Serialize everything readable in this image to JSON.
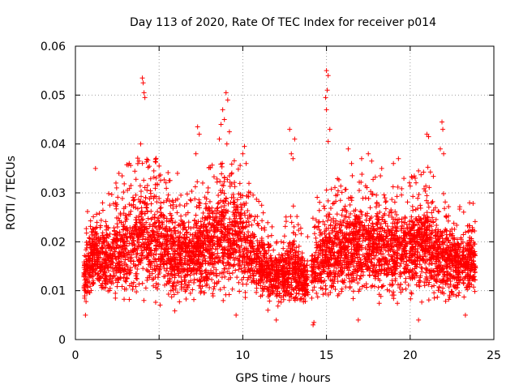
{
  "chart_data": {
    "type": "scatter",
    "title": "Day 113 of 2020, Rate Of TEC Index for receiver p014",
    "xlabel": "GPS time / hours",
    "ylabel": "ROTI / TECUs",
    "xlim": [
      0,
      25
    ],
    "ylim": [
      0,
      0.06
    ],
    "xticks": [
      0,
      5,
      10,
      15,
      20,
      25
    ],
    "yticks": [
      0,
      0.01,
      0.02,
      0.03,
      0.04,
      0.05,
      0.06
    ],
    "xtick_labels": [
      "0",
      "5",
      "10",
      "15",
      "20",
      "25"
    ],
    "ytick_labels": [
      "0",
      "0.01",
      "0.02",
      "0.03",
      "0.04",
      "0.05",
      "0.06"
    ],
    "grid": true,
    "marker": "+",
    "series_color": "#ff0000",
    "density_profile": [
      {
        "x": 0.5,
        "lo": 0.005,
        "hi": 0.018
      },
      {
        "x": 1.0,
        "lo": 0.007,
        "hi": 0.024
      },
      {
        "x": 2.0,
        "lo": 0.006,
        "hi": 0.024
      },
      {
        "x": 3.0,
        "lo": 0.005,
        "hi": 0.03
      },
      {
        "x": 4.0,
        "lo": 0.006,
        "hi": 0.032
      },
      {
        "x": 5.0,
        "lo": 0.006,
        "hi": 0.031
      },
      {
        "x": 6.0,
        "lo": 0.005,
        "hi": 0.026
      },
      {
        "x": 7.0,
        "lo": 0.006,
        "hi": 0.025
      },
      {
        "x": 8.0,
        "lo": 0.006,
        "hi": 0.03
      },
      {
        "x": 9.0,
        "lo": 0.006,
        "hi": 0.033
      },
      {
        "x": 10.0,
        "lo": 0.006,
        "hi": 0.03
      },
      {
        "x": 11.0,
        "lo": 0.007,
        "hi": 0.022
      },
      {
        "x": 12.0,
        "lo": 0.006,
        "hi": 0.018
      },
      {
        "x": 13.0,
        "lo": 0.005,
        "hi": 0.022
      },
      {
        "x": 13.8,
        "lo": 0.007,
        "hi": 0.015
      },
      {
        "x": 14.5,
        "lo": 0.006,
        "hi": 0.024
      },
      {
        "x": 15.0,
        "lo": 0.005,
        "hi": 0.027
      },
      {
        "x": 16.0,
        "lo": 0.006,
        "hi": 0.027
      },
      {
        "x": 17.0,
        "lo": 0.006,
        "hi": 0.029
      },
      {
        "x": 18.0,
        "lo": 0.006,
        "hi": 0.028
      },
      {
        "x": 19.0,
        "lo": 0.006,
        "hi": 0.027
      },
      {
        "x": 20.0,
        "lo": 0.006,
        "hi": 0.028
      },
      {
        "x": 21.0,
        "lo": 0.006,
        "hi": 0.03
      },
      {
        "x": 22.0,
        "lo": 0.006,
        "hi": 0.024
      },
      {
        "x": 23.0,
        "lo": 0.007,
        "hi": 0.022
      },
      {
        "x": 23.9,
        "lo": 0.008,
        "hi": 0.022
      }
    ],
    "x_range_data": [
      0.5,
      23.9
    ],
    "gap": [
      13.9,
      14.1
    ],
    "outliers": [
      [
        4.0,
        0.0535
      ],
      [
        4.05,
        0.0525
      ],
      [
        4.1,
        0.0505
      ],
      [
        4.15,
        0.0495
      ],
      [
        3.9,
        0.04
      ],
      [
        3.8,
        0.0365
      ],
      [
        8.8,
        0.047
      ],
      [
        9.0,
        0.0505
      ],
      [
        9.1,
        0.049
      ],
      [
        8.7,
        0.044
      ],
      [
        8.9,
        0.045
      ],
      [
        9.2,
        0.0425
      ],
      [
        9.05,
        0.04
      ],
      [
        8.6,
        0.041
      ],
      [
        7.3,
        0.0435
      ],
      [
        7.4,
        0.042
      ],
      [
        7.2,
        0.038
      ],
      [
        10.1,
        0.0395
      ],
      [
        10.0,
        0.038
      ],
      [
        10.2,
        0.036
      ],
      [
        12.8,
        0.043
      ],
      [
        13.1,
        0.041
      ],
      [
        12.9,
        0.038
      ],
      [
        13.0,
        0.037
      ],
      [
        15.0,
        0.055
      ],
      [
        15.1,
        0.054
      ],
      [
        15.05,
        0.051
      ],
      [
        14.95,
        0.0495
      ],
      [
        15.0,
        0.047
      ],
      [
        15.2,
        0.043
      ],
      [
        15.1,
        0.0405
      ],
      [
        16.3,
        0.039
      ],
      [
        16.5,
        0.036
      ],
      [
        17.1,
        0.037
      ],
      [
        17.5,
        0.038
      ],
      [
        17.7,
        0.0365
      ],
      [
        19.3,
        0.037
      ],
      [
        19.0,
        0.036
      ],
      [
        20.3,
        0.033
      ],
      [
        20.5,
        0.0345
      ],
      [
        21.0,
        0.042
      ],
      [
        21.1,
        0.0415
      ],
      [
        21.9,
        0.0445
      ],
      [
        21.95,
        0.043
      ],
      [
        21.8,
        0.039
      ],
      [
        22.0,
        0.038
      ],
      [
        18.3,
        0.035
      ],
      [
        6.1,
        0.034
      ],
      [
        5.0,
        0.0355
      ],
      [
        2.6,
        0.034
      ],
      [
        1.2,
        0.035
      ],
      [
        14.2,
        0.003
      ],
      [
        14.25,
        0.0035
      ],
      [
        12.0,
        0.004
      ],
      [
        23.3,
        0.005
      ],
      [
        0.6,
        0.005
      ],
      [
        11.5,
        0.006
      ],
      [
        9.6,
        0.005
      ],
      [
        16.9,
        0.004
      ],
      [
        20.5,
        0.004
      ]
    ],
    "point_count": 5200,
    "seed": 113
  }
}
